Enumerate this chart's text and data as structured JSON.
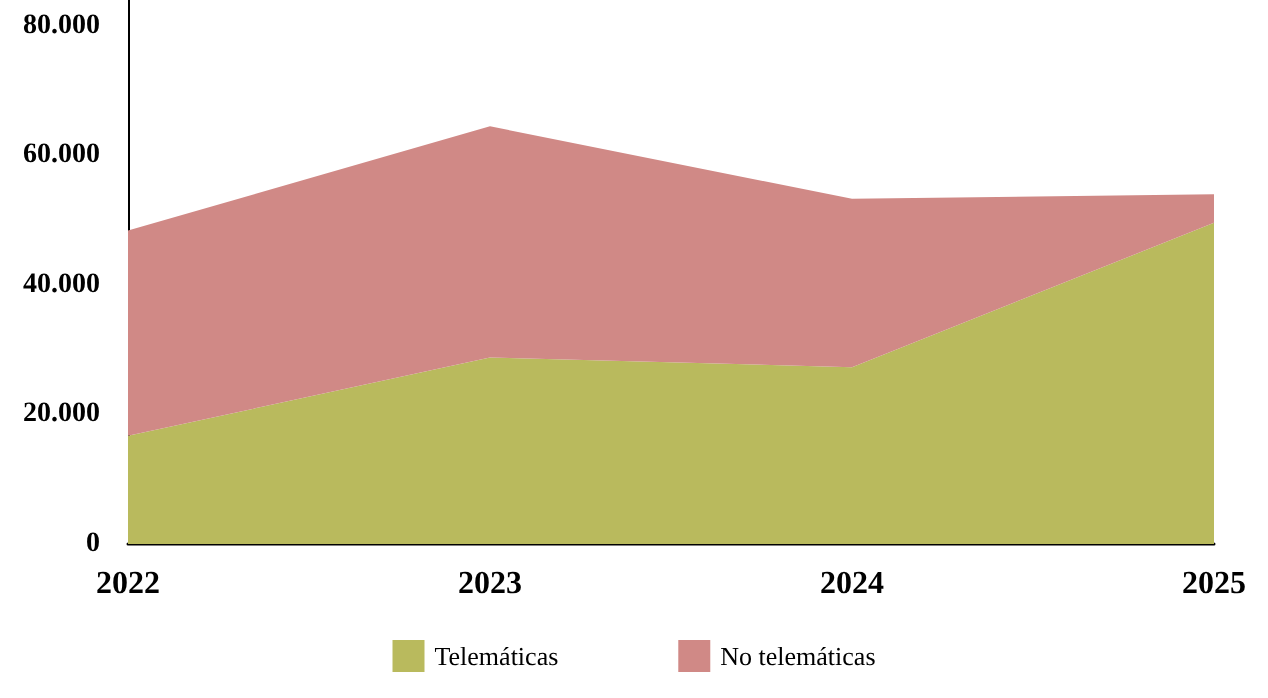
{
  "chart_data": {
    "type": "area",
    "stacked": true,
    "categories": [
      "2022",
      "2023",
      "2024",
      "2025"
    ],
    "series": [
      {
        "name": "Telemáticas",
        "color": "#b9ba5d",
        "values": [
          16700,
          28800,
          27300,
          49600
        ]
      },
      {
        "name": "No telemáticas",
        "color": "#d08986",
        "values": [
          31700,
          35700,
          26000,
          4400
        ]
      }
    ],
    "ylim": [
      0,
      84000
    ],
    "yticks": [
      {
        "value": 0,
        "label": "0"
      },
      {
        "value": 20000,
        "label": "20.000"
      },
      {
        "value": 40000,
        "label": "40.000"
      },
      {
        "value": 60000,
        "label": "60.000"
      },
      {
        "value": 80000,
        "label": "80.000"
      }
    ],
    "grid": false,
    "legend": "bottom"
  }
}
